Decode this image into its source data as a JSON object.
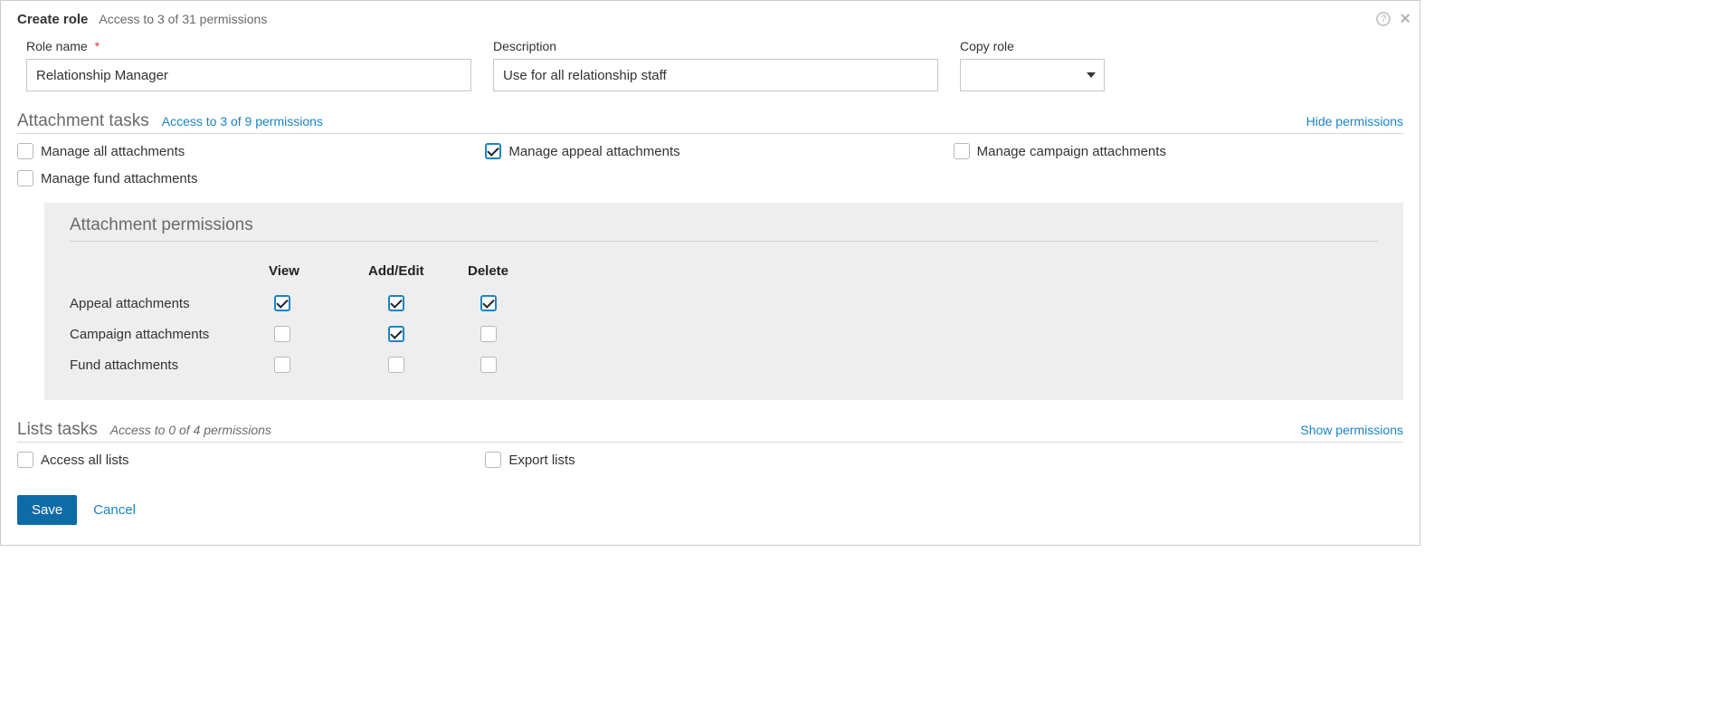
{
  "header": {
    "title": "Create role",
    "subtitle": "Access to 3 of 31 permissions"
  },
  "form": {
    "role_name_label": "Role name",
    "role_name_value": "Relationship Manager",
    "description_label": "Description",
    "description_value": "Use for all relationship staff",
    "copy_role_label": "Copy role",
    "copy_role_value": ""
  },
  "sections": {
    "attachment": {
      "title": "Attachment tasks",
      "sub": "Access to 3 of 9 permissions",
      "toggle": "Hide permissions",
      "items": {
        "manage_all": "Manage all attachments",
        "manage_appeal": "Manage appeal attachments",
        "manage_campaign": "Manage campaign attachments",
        "manage_fund": "Manage fund attachments"
      },
      "panel": {
        "title": "Attachment permissions",
        "cols": {
          "view": "View",
          "add_edit": "Add/Edit",
          "delete": "Delete"
        },
        "rows": {
          "appeal": "Appeal attachments",
          "campaign": "Campaign attachments",
          "fund": "Fund attachments"
        }
      }
    },
    "lists": {
      "title": "Lists tasks",
      "sub": "Access to 0 of 4 permissions",
      "toggle": "Show permissions",
      "items": {
        "access_all": "Access all lists",
        "export": "Export lists"
      }
    }
  },
  "footer": {
    "save": "Save",
    "cancel": "Cancel"
  }
}
